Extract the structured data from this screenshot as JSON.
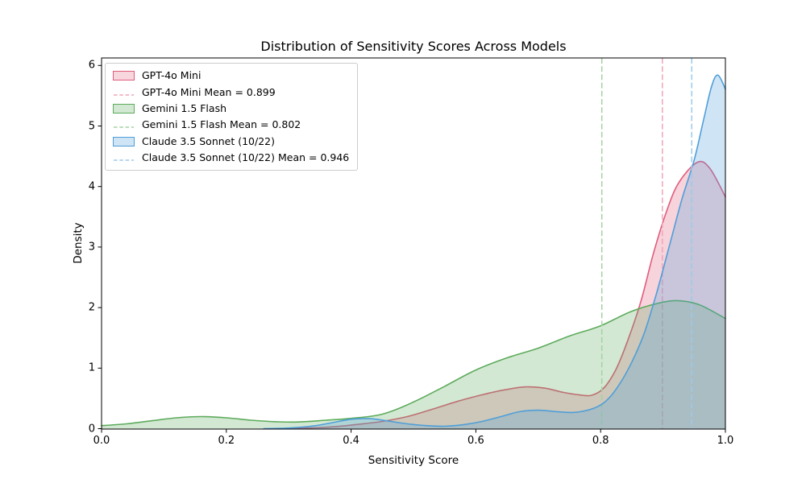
{
  "chart_data": {
    "type": "area",
    "subtype": "kde-density",
    "title": "Distribution of Sensitivity Scores Across Models",
    "xlabel": "Sensitivity Score",
    "ylabel": "Density",
    "xlim": [
      0.0,
      1.0
    ],
    "ylim": [
      0,
      6.12
    ],
    "x_tick_labels": [
      "0.0",
      "0.2",
      "0.4",
      "0.6",
      "0.8",
      "1.0"
    ],
    "y_tick_labels": [
      "0",
      "1",
      "2",
      "3",
      "4",
      "5",
      "6"
    ],
    "grid": false,
    "legend_position": "upper left",
    "series": [
      {
        "name": "GPT-4o Mini",
        "mean": 0.899,
        "color": "#e05c7c",
        "dash_color": "#eea5b7",
        "swatch_fill": "#f8d6de",
        "fill_opacity": 0.27,
        "points": [
          [
            0.29,
            0
          ],
          [
            0.33,
            0.01
          ],
          [
            0.37,
            0.03
          ],
          [
            0.41,
            0.07
          ],
          [
            0.45,
            0.12
          ],
          [
            0.49,
            0.2
          ],
          [
            0.53,
            0.32
          ],
          [
            0.57,
            0.45
          ],
          [
            0.61,
            0.56
          ],
          [
            0.645,
            0.64
          ],
          [
            0.68,
            0.69
          ],
          [
            0.71,
            0.67
          ],
          [
            0.74,
            0.6
          ],
          [
            0.765,
            0.56
          ],
          [
            0.785,
            0.55
          ],
          [
            0.805,
            0.67
          ],
          [
            0.825,
            0.99
          ],
          [
            0.845,
            1.5
          ],
          [
            0.865,
            2.12
          ],
          [
            0.885,
            2.91
          ],
          [
            0.905,
            3.57
          ],
          [
            0.925,
            4.06
          ],
          [
            0.955,
            4.4
          ],
          [
            0.975,
            4.3
          ],
          [
            1.0,
            3.83
          ]
        ]
      },
      {
        "name": "Gemini 1.5 Flash",
        "mean": 0.802,
        "color": "#5dab5c",
        "dash_color": "#a4d1a3",
        "swatch_fill": "#d3e8d3",
        "fill_opacity": 0.27,
        "points": [
          [
            0.0,
            0.05
          ],
          [
            0.04,
            0.08
          ],
          [
            0.08,
            0.13
          ],
          [
            0.12,
            0.18
          ],
          [
            0.16,
            0.2
          ],
          [
            0.2,
            0.18
          ],
          [
            0.24,
            0.14
          ],
          [
            0.28,
            0.115
          ],
          [
            0.315,
            0.11
          ],
          [
            0.36,
            0.14
          ],
          [
            0.4,
            0.17
          ],
          [
            0.45,
            0.24
          ],
          [
            0.5,
            0.44
          ],
          [
            0.55,
            0.7
          ],
          [
            0.6,
            0.97
          ],
          [
            0.65,
            1.17
          ],
          [
            0.7,
            1.33
          ],
          [
            0.75,
            1.53
          ],
          [
            0.8,
            1.7
          ],
          [
            0.85,
            1.94
          ],
          [
            0.9,
            2.09
          ],
          [
            0.93,
            2.11
          ],
          [
            0.96,
            2.04
          ],
          [
            1.0,
            1.82
          ]
        ]
      },
      {
        "name": "Claude 3.5 Sonnet (10/22)",
        "mean": 0.946,
        "color": "#4f9ed9",
        "dash_color": "#9ec9ea",
        "swatch_fill": "#cfe4f4",
        "fill_opacity": 0.27,
        "points": [
          [
            0.26,
            0
          ],
          [
            0.3,
            0.01
          ],
          [
            0.34,
            0.045
          ],
          [
            0.37,
            0.1
          ],
          [
            0.4,
            0.155
          ],
          [
            0.43,
            0.165
          ],
          [
            0.46,
            0.125
          ],
          [
            0.49,
            0.08
          ],
          [
            0.52,
            0.05
          ],
          [
            0.55,
            0.04
          ],
          [
            0.58,
            0.065
          ],
          [
            0.61,
            0.12
          ],
          [
            0.64,
            0.2
          ],
          [
            0.67,
            0.28
          ],
          [
            0.7,
            0.305
          ],
          [
            0.73,
            0.28
          ],
          [
            0.76,
            0.27
          ],
          [
            0.79,
            0.34
          ],
          [
            0.81,
            0.47
          ],
          [
            0.83,
            0.73
          ],
          [
            0.85,
            1.1
          ],
          [
            0.87,
            1.58
          ],
          [
            0.89,
            2.25
          ],
          [
            0.91,
            3.01
          ],
          [
            0.93,
            3.78
          ],
          [
            0.95,
            4.44
          ],
          [
            0.965,
            5.1
          ],
          [
            0.978,
            5.66
          ],
          [
            0.988,
            5.84
          ],
          [
            1.0,
            5.61
          ]
        ]
      }
    ],
    "legend": [
      {
        "label": "GPT-4o Mini",
        "type": "patch",
        "series": 0
      },
      {
        "label": "GPT-4o Mini Mean = 0.899",
        "type": "dash",
        "series": 0
      },
      {
        "label": "Gemini 1.5 Flash",
        "type": "patch",
        "series": 1
      },
      {
        "label": "Gemini 1.5 Flash Mean = 0.802",
        "type": "dash",
        "series": 1
      },
      {
        "label": "Claude 3.5 Sonnet (10/22)",
        "type": "patch",
        "series": 2
      },
      {
        "label": "Claude 3.5 Sonnet (10/22) Mean = 0.946",
        "type": "dash",
        "series": 2
      }
    ]
  }
}
